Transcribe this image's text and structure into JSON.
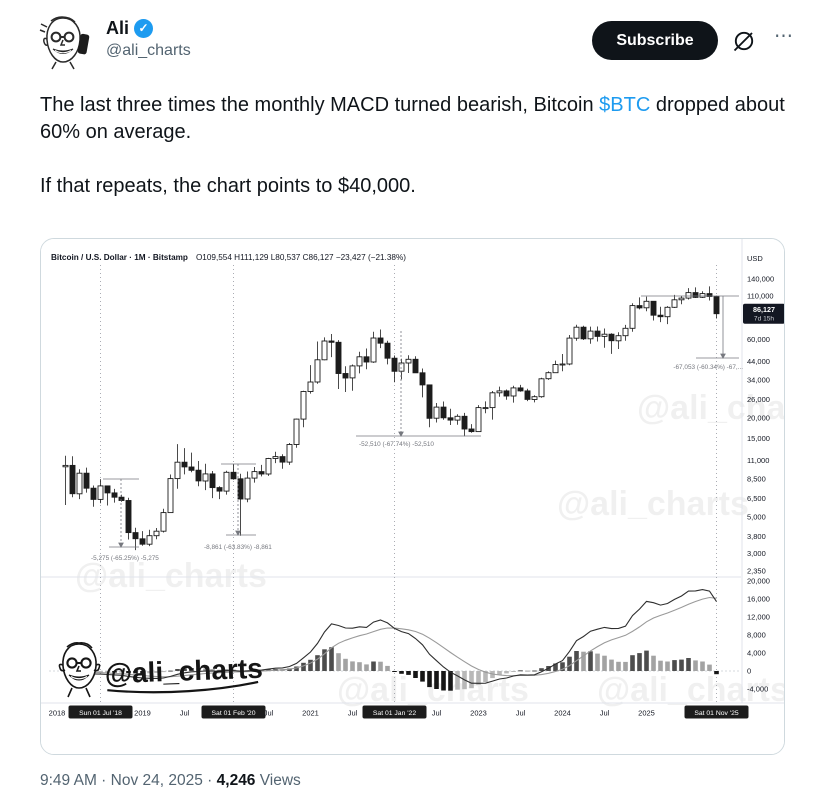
{
  "tweet": {
    "author": {
      "name": "Ali",
      "handle": "@ali_charts"
    },
    "subscribe_label": "Subscribe",
    "more_glyph": "⋯",
    "verified_glyph": "✓",
    "text": {
      "p1_before": "The last three times the monthly MACD turned bearish, Bitcoin ",
      "cashtag": "$BTC",
      "p1_after": " dropped about 60% on average.",
      "p2": "If that repeats, the chart points to $40,000."
    },
    "footer": {
      "time_date": "9:49 AM · Nov 24, 2025",
      "separator": " · ",
      "views_count": "4,246",
      "views_label": " Views"
    }
  },
  "colors": {
    "accent": "#1d9bf0",
    "text": "#0f1419",
    "secondary": "#536471",
    "border": "#cfd9de",
    "candle": "#1c1c1c",
    "chart_text": "#131722",
    "annotation": "#76787f"
  },
  "chart_data": {
    "type": "candlestick",
    "symbol_title": "Bitcoin / U.S. Dollar · 1M · Bitstamp",
    "ohlc_readout": "O109,554  H111,129  L80,537  C86,127  −23,427 (−21.38%)",
    "currency_label": "USD",
    "start_month": "2018-02",
    "interval": "1M",
    "price_scale": "log",
    "candles": [
      [
        10100,
        11790,
        5920,
        10300
      ],
      [
        10300,
        11700,
        6600,
        6930
      ],
      [
        6930,
        9760,
        6430,
        9240
      ],
      [
        9240,
        9990,
        7040,
        7490
      ],
      [
        7490,
        7780,
        5780,
        6400
      ],
      [
        6400,
        8500,
        6070,
        7730
      ],
      [
        7730,
        7760,
        5880,
        7010
      ],
      [
        7010,
        7410,
        6120,
        6600
      ],
      [
        6600,
        6840,
        6200,
        6300
      ],
      [
        6300,
        6550,
        3650,
        4020
      ],
      [
        4020,
        4300,
        3150,
        3690
      ],
      [
        3690,
        4110,
        3350,
        3420
      ],
      [
        3420,
        4190,
        3330,
        3850
      ],
      [
        3850,
        4290,
        3660,
        4100
      ],
      [
        4100,
        5620,
        4030,
        5320
      ],
      [
        5320,
        9070,
        5320,
        8560
      ],
      [
        8560,
        13880,
        7430,
        10770
      ],
      [
        10770,
        13130,
        9080,
        10080
      ],
      [
        10080,
        12320,
        9350,
        9630
      ],
      [
        9630,
        10950,
        7700,
        8290
      ],
      [
        8290,
        10540,
        7290,
        9150
      ],
      [
        9150,
        9520,
        6520,
        7550
      ],
      [
        7550,
        7690,
        6430,
        7190
      ],
      [
        7190,
        9570,
        6850,
        9350
      ],
      [
        9350,
        10500,
        8440,
        8540
      ],
      [
        8540,
        9170,
        3850,
        6440
      ],
      [
        6440,
        9460,
        6150,
        8630
      ],
      [
        8630,
        10070,
        8100,
        9450
      ],
      [
        9450,
        10380,
        8830,
        9140
      ],
      [
        9140,
        11440,
        8900,
        11350
      ],
      [
        11350,
        12470,
        10640,
        11650
      ],
      [
        11650,
        12050,
        9820,
        10780
      ],
      [
        10780,
        14100,
        10380,
        13800
      ],
      [
        13800,
        19850,
        13200,
        19700
      ],
      [
        19700,
        29300,
        17570,
        28990
      ],
      [
        28990,
        41950,
        28130,
        33110
      ],
      [
        33110,
        58350,
        32300,
        45160
      ],
      [
        45160,
        61800,
        44950,
        58780
      ],
      [
        58780,
        64870,
        46930,
        57750
      ],
      [
        57750,
        59500,
        30000,
        37300
      ],
      [
        37300,
        41300,
        28800,
        35040
      ],
      [
        35040,
        42300,
        29300,
        41460
      ],
      [
        41460,
        50500,
        37330,
        47100
      ],
      [
        47100,
        52950,
        39600,
        43790
      ],
      [
        43790,
        66990,
        43280,
        61300
      ],
      [
        61300,
        69000,
        53250,
        57000
      ],
      [
        57000,
        59050,
        42330,
        46200
      ],
      [
        46200,
        47990,
        32950,
        38480
      ],
      [
        38480,
        45820,
        34300,
        43190
      ],
      [
        43190,
        48190,
        37550,
        45510
      ],
      [
        45510,
        47450,
        37580,
        37650
      ],
      [
        37650,
        40020,
        26700,
        31790
      ],
      [
        31790,
        31980,
        17590,
        19925
      ],
      [
        19925,
        24670,
        18780,
        23290
      ],
      [
        23290,
        25210,
        19520,
        20050
      ],
      [
        20050,
        22800,
        18125,
        19425
      ],
      [
        19425,
        21080,
        18190,
        20490
      ],
      [
        20490,
        21480,
        15480,
        17160
      ],
      [
        17160,
        18370,
        16260,
        16540
      ],
      [
        16540,
        23960,
        16490,
        23130
      ],
      [
        23130,
        25250,
        21400,
        23140
      ],
      [
        23140,
        29180,
        19550,
        28470
      ],
      [
        28470,
        31050,
        26940,
        29250
      ],
      [
        29250,
        29820,
        25810,
        27220
      ],
      [
        27220,
        31400,
        24800,
        30470
      ],
      [
        30470,
        31800,
        28850,
        29230
      ],
      [
        29230,
        30100,
        25350,
        25940
      ],
      [
        25940,
        27480,
        24900,
        26970
      ],
      [
        26970,
        35150,
        26540,
        34650
      ],
      [
        34650,
        38400,
        34100,
        37710
      ],
      [
        37710,
        44700,
        37600,
        42280
      ],
      [
        42280,
        48970,
        38500,
        42580
      ],
      [
        42580,
        63930,
        41880,
        61180
      ],
      [
        61180,
        73790,
        59000,
        71330
      ],
      [
        71330,
        72800,
        59600,
        60640
      ],
      [
        60640,
        71950,
        56550,
        67530
      ],
      [
        67530,
        71990,
        58400,
        62680
      ],
      [
        62680,
        69990,
        53500,
        64630
      ],
      [
        64630,
        65600,
        49050,
        58970
      ],
      [
        58970,
        66500,
        52550,
        63330
      ],
      [
        63330,
        73600,
        58900,
        70220
      ],
      [
        70220,
        99660,
        66830,
        96450
      ],
      [
        96450,
        108270,
        91530,
        93430
      ],
      [
        93430,
        109350,
        89160,
        102400
      ],
      [
        102400,
        102550,
        78260,
        84350
      ],
      [
        84350,
        95000,
        76600,
        82550
      ],
      [
        82550,
        95770,
        74420,
        94200
      ],
      [
        94200,
        112000,
        93360,
        104600
      ],
      [
        104600,
        110530,
        98240,
        107140
      ],
      [
        107140,
        123230,
        105110,
        115760
      ],
      [
        115760,
        124480,
        107270,
        108230
      ],
      [
        108230,
        118000,
        107250,
        114050
      ],
      [
        114050,
        126200,
        103550,
        109554
      ],
      [
        109554,
        111129,
        80537,
        86127
      ]
    ],
    "price_ticks": [
      140000,
      110000,
      60000,
      44000,
      34000,
      26000,
      20000,
      15000,
      11000,
      8500,
      6500,
      5000,
      3800,
      3000,
      2350
    ],
    "macd_ticks": [
      20000,
      16000,
      12000,
      8000,
      4000,
      0,
      -4000
    ],
    "macd_settings": {
      "fast": 12,
      "slow": 26,
      "signal": 9
    },
    "last_price_tag": {
      "price": "86,127",
      "countdown": "7d 15h"
    },
    "time_axis": [
      {
        "label": "2018",
        "i": -1
      },
      {
        "label": "Sun 01 Jul '18",
        "i": 5,
        "marker": true
      },
      {
        "label": "2019",
        "i": 11
      },
      {
        "label": "Jul",
        "i": 17
      },
      {
        "label": "Sat 01 Feb '20",
        "i": 24,
        "marker": true
      },
      {
        "label": "Jul",
        "i": 29
      },
      {
        "label": "2021",
        "i": 35
      },
      {
        "label": "Jul",
        "i": 41
      },
      {
        "label": "Sat 01 Jan '22",
        "i": 47,
        "marker": true
      },
      {
        "label": "Jul",
        "i": 53
      },
      {
        "label": "2023",
        "i": 59
      },
      {
        "label": "Jul",
        "i": 65
      },
      {
        "label": "2024",
        "i": 71
      },
      {
        "label": "Jul",
        "i": 77
      },
      {
        "label": "2025",
        "i": 83
      },
      {
        "label": "Sat 01 Nov '25",
        "i": 93,
        "marker": true
      }
    ],
    "annotations": [
      {
        "text": "-5,275 (-65.25%) -5,275"
      },
      {
        "text": "-8,861 (-63.83%) -8,861"
      },
      {
        "text": "-52,510 (-67.74%) -52,510"
      },
      {
        "text": "-67,053 (-60.34%) -67,..."
      }
    ],
    "watermark": "@ali_charts",
    "logo_text": "@ali_charts"
  }
}
